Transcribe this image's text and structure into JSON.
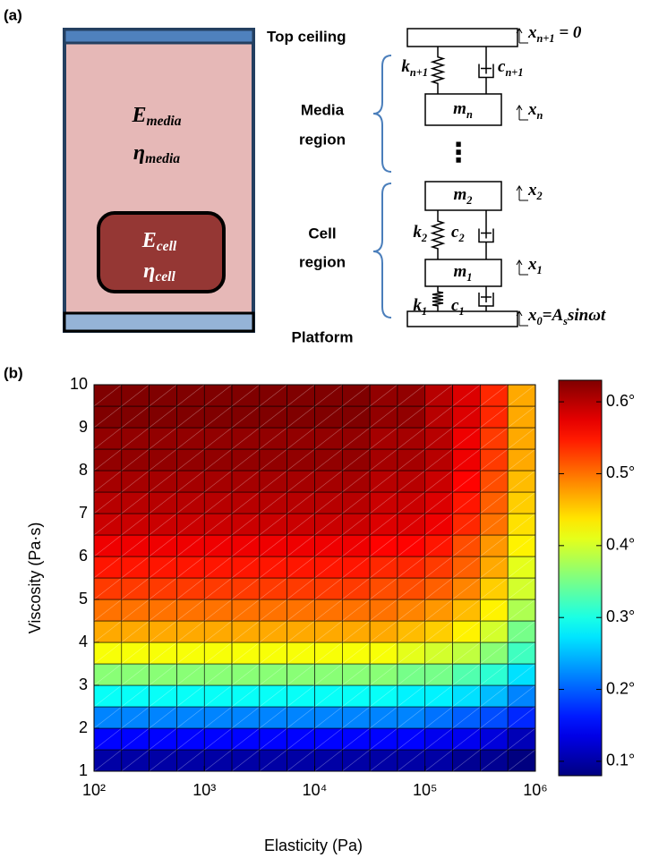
{
  "panel_a": {
    "label": "(a)",
    "media_E": [
      {
        "text": "E"
      },
      {
        "sub": "media"
      }
    ],
    "media_eta": [
      {
        "text": "η"
      },
      {
        "sub": "media"
      }
    ],
    "cell_E": [
      {
        "text": "E"
      },
      {
        "sub": "cell"
      }
    ],
    "cell_eta": [
      {
        "text": "η"
      },
      {
        "sub": "cell"
      }
    ],
    "top_ceiling": "Top ceiling",
    "media_region": [
      "Media",
      "region"
    ],
    "cell_region": [
      "Cell",
      "region"
    ],
    "platform": "Platform",
    "ellipsis": "⋮",
    "m_n": [
      {
        "text": "m"
      },
      {
        "sub": "n"
      }
    ],
    "m_2": [
      {
        "text": "m"
      },
      {
        "sub": "2"
      }
    ],
    "m_1": [
      {
        "text": "m"
      },
      {
        "sub": "1"
      }
    ],
    "k_n1": [
      {
        "text": "k"
      },
      {
        "sub": "n+1"
      }
    ],
    "c_n1": [
      {
        "text": "c"
      },
      {
        "sub": "n+1"
      }
    ],
    "k_2": [
      {
        "text": "k"
      },
      {
        "sub": "2"
      }
    ],
    "c_2": [
      {
        "text": "c"
      },
      {
        "sub": "2"
      }
    ],
    "k_1": [
      {
        "text": "k"
      },
      {
        "sub": "1"
      }
    ],
    "c_1": [
      {
        "text": "c"
      },
      {
        "sub": "1"
      }
    ],
    "x_n1": [
      {
        "text": "x"
      },
      {
        "sub": "n+1"
      },
      {
        "text": " = 0"
      }
    ],
    "x_n": [
      {
        "text": "x"
      },
      {
        "sub": "n"
      }
    ],
    "x_2": [
      {
        "text": "x"
      },
      {
        "sub": "2"
      }
    ],
    "x_1": [
      {
        "text": "x"
      },
      {
        "sub": "1"
      }
    ],
    "x_0": [
      {
        "text": "x"
      },
      {
        "sub": "0"
      },
      {
        "text": "=A"
      },
      {
        "sub": "s"
      },
      {
        "text": "sinωt"
      }
    ]
  },
  "chart_data": {
    "type": "heatmap",
    "panel_label": "(b)",
    "xlabel": "Elasticity (Pa)",
    "ylabel": "Viscosity (Pa·s)",
    "xscale": "log",
    "xlim": [
      100,
      1000000
    ],
    "xticks": [
      {
        "value": 100,
        "label": "10²"
      },
      {
        "value": 1000,
        "label": "10³"
      },
      {
        "value": 10000,
        "label": "10⁴"
      },
      {
        "value": 100000,
        "label": "10⁵"
      },
      {
        "value": 1000000,
        "label": "10⁶"
      }
    ],
    "ylim": [
      1,
      10
    ],
    "yticks": [
      1,
      2,
      3,
      4,
      5,
      6,
      7,
      8,
      9,
      10
    ],
    "x_bins": [
      100,
      177.8,
      316.2,
      562.3,
      1000,
      1778,
      3162,
      5623,
      10000,
      17783,
      31623,
      56234,
      100000,
      177828,
      316228,
      562341,
      1000000
    ],
    "y_bins": [
      1,
      1.5,
      2,
      2.5,
      3,
      3.5,
      4,
      4.5,
      5,
      5.5,
      6,
      6.5,
      7,
      7.5,
      8,
      8.5,
      9,
      9.5,
      10
    ],
    "colormap": "jet",
    "clim": [
      0.08,
      0.63
    ],
    "cticks": [
      {
        "value": 0.1,
        "label": "0.1°"
      },
      {
        "value": 0.2,
        "label": "0.2°"
      },
      {
        "value": 0.3,
        "label": "0.3°"
      },
      {
        "value": 0.4,
        "label": "0.4°"
      },
      {
        "value": 0.5,
        "label": "0.5°"
      },
      {
        "value": 0.6,
        "label": "0.6°"
      }
    ],
    "z": [
      [
        0.1,
        0.1,
        0.1,
        0.1,
        0.1,
        0.1,
        0.1,
        0.1,
        0.1,
        0.1,
        0.1,
        0.1,
        0.1,
        0.09,
        0.09,
        0.08
      ],
      [
        0.15,
        0.15,
        0.15,
        0.15,
        0.15,
        0.15,
        0.15,
        0.15,
        0.15,
        0.15,
        0.15,
        0.15,
        0.14,
        0.14,
        0.13,
        0.11
      ],
      [
        0.22,
        0.22,
        0.22,
        0.22,
        0.22,
        0.22,
        0.22,
        0.22,
        0.22,
        0.22,
        0.22,
        0.22,
        0.21,
        0.2,
        0.19,
        0.17
      ],
      [
        0.29,
        0.29,
        0.29,
        0.29,
        0.29,
        0.29,
        0.29,
        0.29,
        0.29,
        0.29,
        0.29,
        0.28,
        0.28,
        0.27,
        0.25,
        0.22
      ],
      [
        0.36,
        0.36,
        0.36,
        0.36,
        0.36,
        0.36,
        0.36,
        0.36,
        0.36,
        0.36,
        0.36,
        0.35,
        0.35,
        0.33,
        0.31,
        0.27
      ],
      [
        0.42,
        0.42,
        0.42,
        0.42,
        0.42,
        0.42,
        0.42,
        0.42,
        0.42,
        0.42,
        0.42,
        0.41,
        0.4,
        0.39,
        0.36,
        0.32
      ],
      [
        0.47,
        0.47,
        0.47,
        0.47,
        0.47,
        0.47,
        0.47,
        0.47,
        0.47,
        0.47,
        0.47,
        0.46,
        0.45,
        0.43,
        0.4,
        0.35
      ],
      [
        0.5,
        0.5,
        0.5,
        0.5,
        0.5,
        0.5,
        0.5,
        0.5,
        0.5,
        0.5,
        0.5,
        0.49,
        0.48,
        0.46,
        0.43,
        0.38
      ],
      [
        0.53,
        0.53,
        0.53,
        0.53,
        0.53,
        0.53,
        0.53,
        0.53,
        0.53,
        0.53,
        0.52,
        0.52,
        0.51,
        0.49,
        0.45,
        0.4
      ],
      [
        0.55,
        0.55,
        0.55,
        0.55,
        0.55,
        0.55,
        0.55,
        0.55,
        0.55,
        0.55,
        0.54,
        0.54,
        0.53,
        0.51,
        0.47,
        0.41
      ],
      [
        0.57,
        0.57,
        0.57,
        0.57,
        0.57,
        0.57,
        0.57,
        0.57,
        0.57,
        0.57,
        0.56,
        0.56,
        0.55,
        0.52,
        0.48,
        0.43
      ],
      [
        0.59,
        0.59,
        0.59,
        0.59,
        0.59,
        0.59,
        0.59,
        0.59,
        0.59,
        0.59,
        0.58,
        0.58,
        0.57,
        0.54,
        0.5,
        0.44
      ],
      [
        0.6,
        0.6,
        0.6,
        0.6,
        0.6,
        0.6,
        0.6,
        0.6,
        0.6,
        0.6,
        0.59,
        0.59,
        0.58,
        0.55,
        0.51,
        0.45
      ],
      [
        0.61,
        0.61,
        0.61,
        0.61,
        0.61,
        0.61,
        0.61,
        0.61,
        0.61,
        0.61,
        0.6,
        0.6,
        0.59,
        0.56,
        0.52,
        0.46
      ],
      [
        0.62,
        0.62,
        0.62,
        0.62,
        0.62,
        0.62,
        0.62,
        0.62,
        0.62,
        0.62,
        0.61,
        0.61,
        0.6,
        0.57,
        0.53,
        0.47
      ],
      [
        0.62,
        0.62,
        0.62,
        0.62,
        0.62,
        0.62,
        0.62,
        0.62,
        0.62,
        0.62,
        0.61,
        0.61,
        0.6,
        0.57,
        0.53,
        0.47
      ],
      [
        0.63,
        0.63,
        0.63,
        0.63,
        0.63,
        0.63,
        0.63,
        0.63,
        0.63,
        0.63,
        0.62,
        0.62,
        0.6,
        0.58,
        0.54,
        0.47
      ],
      [
        0.63,
        0.63,
        0.63,
        0.63,
        0.63,
        0.63,
        0.63,
        0.63,
        0.63,
        0.63,
        0.62,
        0.62,
        0.6,
        0.58,
        0.54,
        0.47
      ]
    ]
  }
}
